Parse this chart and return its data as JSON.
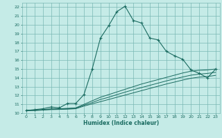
{
  "title": "",
  "xlabel": "Humidex (Indice chaleur)",
  "ylabel": "",
  "bg_color": "#c5ebe7",
  "grid_color": "#7ab8b4",
  "line_color": "#1a6b60",
  "xlim": [
    -0.5,
    23.5
  ],
  "ylim": [
    10,
    22.5
  ],
  "xticks": [
    0,
    1,
    2,
    3,
    4,
    5,
    6,
    7,
    8,
    9,
    10,
    11,
    12,
    13,
    14,
    15,
    16,
    17,
    18,
    19,
    20,
    21,
    22,
    23
  ],
  "yticks": [
    10,
    11,
    12,
    13,
    14,
    15,
    16,
    17,
    18,
    19,
    20,
    21,
    22
  ],
  "main_y": [
    10.3,
    10.4,
    10.5,
    10.7,
    10.6,
    11.1,
    11.1,
    12.1,
    15.0,
    18.5,
    19.9,
    21.5,
    22.1,
    20.5,
    20.2,
    18.5,
    18.3,
    17.0,
    16.5,
    16.1,
    14.9,
    14.5,
    14.0,
    15.0
  ],
  "line2_y": [
    10.3,
    10.35,
    10.4,
    10.5,
    10.5,
    10.55,
    10.6,
    11.0,
    11.4,
    11.8,
    12.1,
    12.4,
    12.7,
    13.0,
    13.3,
    13.55,
    13.8,
    14.05,
    14.3,
    14.55,
    14.75,
    14.85,
    14.9,
    15.0
  ],
  "line3_y": [
    10.3,
    10.32,
    10.38,
    10.45,
    10.48,
    10.5,
    10.55,
    10.9,
    11.2,
    11.55,
    11.8,
    12.1,
    12.38,
    12.65,
    12.9,
    13.15,
    13.4,
    13.65,
    13.88,
    14.1,
    14.3,
    14.42,
    14.5,
    14.62
  ],
  "line4_y": [
    10.3,
    10.3,
    10.35,
    10.4,
    10.42,
    10.45,
    10.5,
    10.8,
    11.05,
    11.3,
    11.55,
    11.8,
    12.05,
    12.3,
    12.55,
    12.8,
    13.05,
    13.3,
    13.52,
    13.75,
    13.95,
    14.08,
    14.15,
    14.28
  ]
}
